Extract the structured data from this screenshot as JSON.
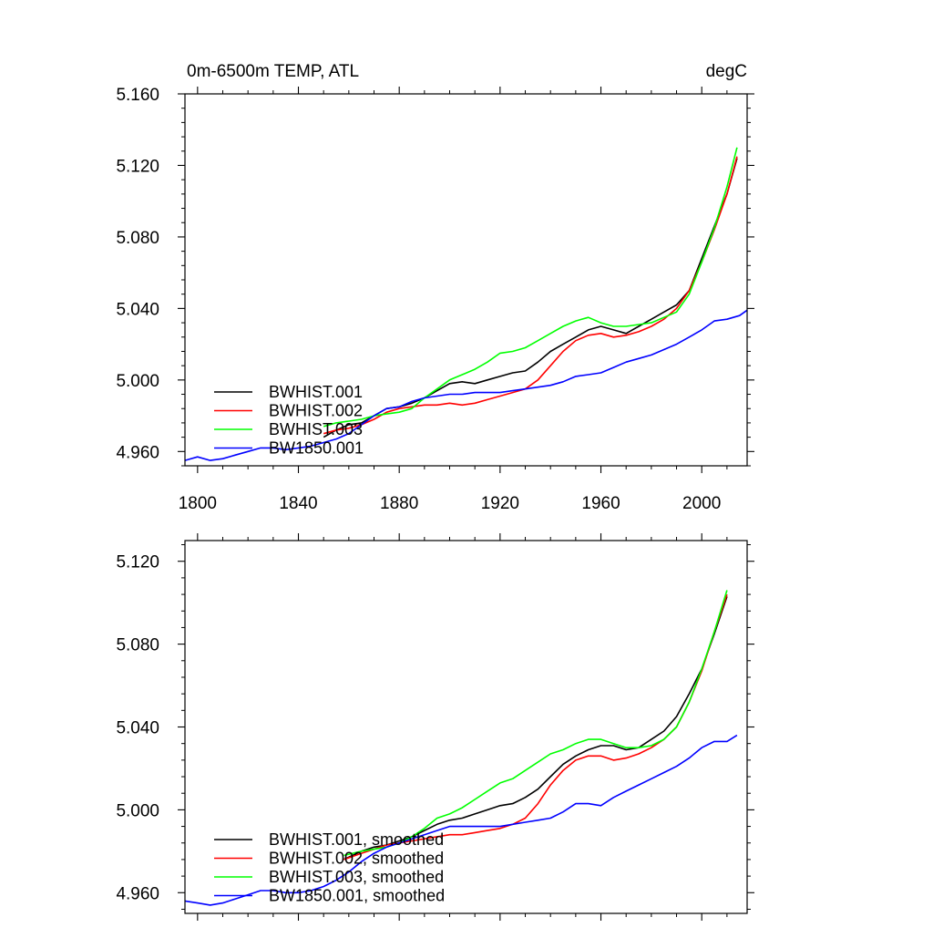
{
  "chart_data": [
    {
      "type": "line",
      "title": "0m-6500m TEMP, ATL",
      "units": "degC",
      "xlabel": "",
      "ylabel": "",
      "xlim": [
        1795,
        2018
      ],
      "ylim": [
        4.952,
        5.16
      ],
      "x_ticks": [
        1800,
        1840,
        1880,
        1920,
        1960,
        2000
      ],
      "x_tick_labels": [
        "1800",
        "1840",
        "1880",
        "1920",
        "1960",
        "2000"
      ],
      "y_ticks": [
        4.96,
        5.0,
        5.04,
        5.08,
        5.12,
        5.16
      ],
      "y_tick_labels": [
        "4.960",
        "5.000",
        "5.040",
        "5.080",
        "5.120",
        "5.160"
      ],
      "legend_position": "bottom-left",
      "series": [
        {
          "name": "BWHIST.001",
          "color": "#000000",
          "x": [
            1850,
            1855,
            1860,
            1865,
            1870,
            1875,
            1880,
            1885,
            1890,
            1895,
            1900,
            1905,
            1910,
            1915,
            1920,
            1925,
            1930,
            1935,
            1940,
            1945,
            1950,
            1955,
            1960,
            1965,
            1970,
            1975,
            1980,
            1985,
            1990,
            1995,
            2000,
            2005,
            2010,
            2014
          ],
          "y": [
            4.968,
            4.972,
            4.975,
            4.976,
            4.98,
            4.984,
            4.985,
            4.987,
            4.99,
            4.994,
            4.998,
            4.999,
            4.998,
            5.0,
            5.002,
            5.004,
            5.005,
            5.01,
            5.016,
            5.02,
            5.024,
            5.028,
            5.03,
            5.028,
            5.026,
            5.03,
            5.034,
            5.038,
            5.042,
            5.05,
            5.068,
            5.086,
            5.104,
            5.124
          ]
        },
        {
          "name": "BWHIST.002",
          "color": "#ff0000",
          "x": [
            1850,
            1855,
            1860,
            1865,
            1870,
            1875,
            1880,
            1885,
            1890,
            1895,
            1900,
            1905,
            1910,
            1915,
            1920,
            1925,
            1930,
            1935,
            1940,
            1945,
            1950,
            1955,
            1960,
            1965,
            1970,
            1975,
            1980,
            1985,
            1990,
            1995,
            2000,
            2005,
            2010,
            2014
          ],
          "y": [
            4.97,
            4.972,
            4.973,
            4.975,
            4.978,
            4.982,
            4.984,
            4.985,
            4.986,
            4.986,
            4.987,
            4.986,
            4.987,
            4.989,
            4.991,
            4.993,
            4.995,
            5.0,
            5.008,
            5.016,
            5.022,
            5.025,
            5.026,
            5.024,
            5.025,
            5.027,
            5.03,
            5.034,
            5.04,
            5.05,
            5.066,
            5.084,
            5.104,
            5.125
          ]
        },
        {
          "name": "BWHIST.003",
          "color": "#00ff00",
          "x": [
            1850,
            1855,
            1860,
            1865,
            1870,
            1875,
            1880,
            1885,
            1890,
            1895,
            1900,
            1905,
            1910,
            1915,
            1920,
            1925,
            1930,
            1935,
            1940,
            1945,
            1950,
            1955,
            1960,
            1965,
            1970,
            1975,
            1980,
            1985,
            1990,
            1995,
            2000,
            2005,
            2010,
            2014
          ],
          "y": [
            4.974,
            4.976,
            4.977,
            4.978,
            4.98,
            4.981,
            4.982,
            4.984,
            4.99,
            4.995,
            5.0,
            5.003,
            5.006,
            5.01,
            5.015,
            5.016,
            5.018,
            5.022,
            5.026,
            5.03,
            5.033,
            5.035,
            5.032,
            5.03,
            5.03,
            5.031,
            5.032,
            5.035,
            5.038,
            5.048,
            5.066,
            5.085,
            5.108,
            5.13
          ]
        },
        {
          "name": "BW1850.001",
          "color": "#0000ff",
          "x": [
            1795,
            1800,
            1805,
            1810,
            1815,
            1820,
            1825,
            1830,
            1835,
            1840,
            1845,
            1850,
            1855,
            1860,
            1865,
            1870,
            1875,
            1880,
            1885,
            1890,
            1895,
            1900,
            1905,
            1910,
            1915,
            1920,
            1925,
            1930,
            1935,
            1940,
            1945,
            1950,
            1955,
            1960,
            1965,
            1970,
            1975,
            1980,
            1985,
            1990,
            1995,
            2000,
            2005,
            2010,
            2015,
            2018
          ],
          "y": [
            4.955,
            4.957,
            4.955,
            4.956,
            4.958,
            4.96,
            4.962,
            4.962,
            4.961,
            4.962,
            4.963,
            4.965,
            4.967,
            4.97,
            4.975,
            4.98,
            4.984,
            4.985,
            4.988,
            4.99,
            4.991,
            4.992,
            4.992,
            4.993,
            4.993,
            4.993,
            4.994,
            4.995,
            4.996,
            4.997,
            4.999,
            5.002,
            5.003,
            5.004,
            5.007,
            5.01,
            5.012,
            5.014,
            5.017,
            5.02,
            5.024,
            5.028,
            5.033,
            5.034,
            5.036,
            5.039
          ]
        }
      ]
    },
    {
      "type": "line",
      "title": "",
      "xlabel": "",
      "ylabel": "",
      "xlim": [
        1795,
        2018
      ],
      "ylim": [
        4.95,
        5.13
      ],
      "x_ticks": [
        1800,
        1840,
        1880,
        1920,
        1960,
        2000
      ],
      "y_ticks": [
        4.96,
        5.0,
        5.04,
        5.08,
        5.12
      ],
      "y_tick_labels": [
        "4.960",
        "5.000",
        "5.040",
        "5.080",
        "5.120"
      ],
      "legend_position": "bottom-left",
      "series": [
        {
          "name": "BWHIST.001, smoothed",
          "color": "#000000",
          "x": [
            1858,
            1865,
            1870,
            1875,
            1880,
            1885,
            1890,
            1895,
            1900,
            1905,
            1910,
            1915,
            1920,
            1925,
            1930,
            1935,
            1940,
            1945,
            1950,
            1955,
            1960,
            1965,
            1970,
            1975,
            1980,
            1985,
            1990,
            1995,
            2000,
            2005,
            2010
          ],
          "y": [
            4.976,
            4.98,
            4.982,
            4.983,
            4.985,
            4.987,
            4.99,
            4.993,
            4.995,
            4.996,
            4.998,
            5.0,
            5.002,
            5.003,
            5.006,
            5.01,
            5.016,
            5.022,
            5.026,
            5.029,
            5.031,
            5.031,
            5.029,
            5.03,
            5.034,
            5.038,
            5.045,
            5.056,
            5.068,
            5.085,
            5.103
          ]
        },
        {
          "name": "BWHIST.002, smoothed",
          "color": "#ff0000",
          "x": [
            1858,
            1865,
            1870,
            1875,
            1880,
            1885,
            1890,
            1895,
            1900,
            1905,
            1910,
            1915,
            1920,
            1925,
            1930,
            1935,
            1940,
            1945,
            1950,
            1955,
            1960,
            1965,
            1970,
            1975,
            1980,
            1985,
            1990,
            1995,
            2000,
            2005,
            2010
          ],
          "y": [
            4.976,
            4.979,
            4.981,
            4.983,
            4.984,
            4.985,
            4.986,
            4.987,
            4.988,
            4.988,
            4.989,
            4.99,
            4.991,
            4.993,
            4.996,
            5.003,
            5.012,
            5.019,
            5.024,
            5.026,
            5.026,
            5.024,
            5.025,
            5.027,
            5.03,
            5.034,
            5.04,
            5.052,
            5.067,
            5.086,
            5.104
          ]
        },
        {
          "name": "BWHIST.003, smoothed",
          "color": "#00ff00",
          "x": [
            1858,
            1865,
            1870,
            1875,
            1880,
            1885,
            1890,
            1895,
            1900,
            1905,
            1910,
            1915,
            1920,
            1925,
            1930,
            1935,
            1940,
            1945,
            1950,
            1955,
            1960,
            1965,
            1970,
            1975,
            1980,
            1985,
            1990,
            1995,
            2000,
            2005,
            2010
          ],
          "y": [
            4.978,
            4.98,
            4.981,
            4.982,
            4.984,
            4.987,
            4.991,
            4.996,
            4.998,
            5.001,
            5.005,
            5.009,
            5.013,
            5.015,
            5.019,
            5.023,
            5.027,
            5.029,
            5.032,
            5.034,
            5.034,
            5.032,
            5.03,
            5.03,
            5.031,
            5.034,
            5.04,
            5.052,
            5.068,
            5.086,
            5.106
          ]
        },
        {
          "name": "BW1850.001, smoothed",
          "color": "#0000ff",
          "x": [
            1795,
            1800,
            1805,
            1810,
            1815,
            1820,
            1825,
            1830,
            1835,
            1840,
            1845,
            1850,
            1855,
            1860,
            1865,
            1870,
            1875,
            1880,
            1885,
            1890,
            1895,
            1900,
            1905,
            1910,
            1915,
            1920,
            1925,
            1930,
            1935,
            1940,
            1945,
            1950,
            1955,
            1960,
            1965,
            1970,
            1975,
            1980,
            1985,
            1990,
            1995,
            2000,
            2005,
            2010,
            2014
          ],
          "y": [
            4.956,
            4.955,
            4.954,
            4.955,
            4.957,
            4.959,
            4.961,
            4.961,
            4.96,
            4.96,
            4.961,
            4.963,
            4.966,
            4.97,
            4.975,
            4.979,
            4.982,
            4.984,
            4.986,
            4.988,
            4.99,
            4.992,
            4.992,
            4.992,
            4.992,
            4.992,
            4.993,
            4.994,
            4.995,
            4.996,
            4.999,
            5.003,
            5.003,
            5.002,
            5.006,
            5.009,
            5.012,
            5.015,
            5.018,
            5.021,
            5.025,
            5.03,
            5.033,
            5.033,
            5.036
          ]
        }
      ]
    }
  ]
}
